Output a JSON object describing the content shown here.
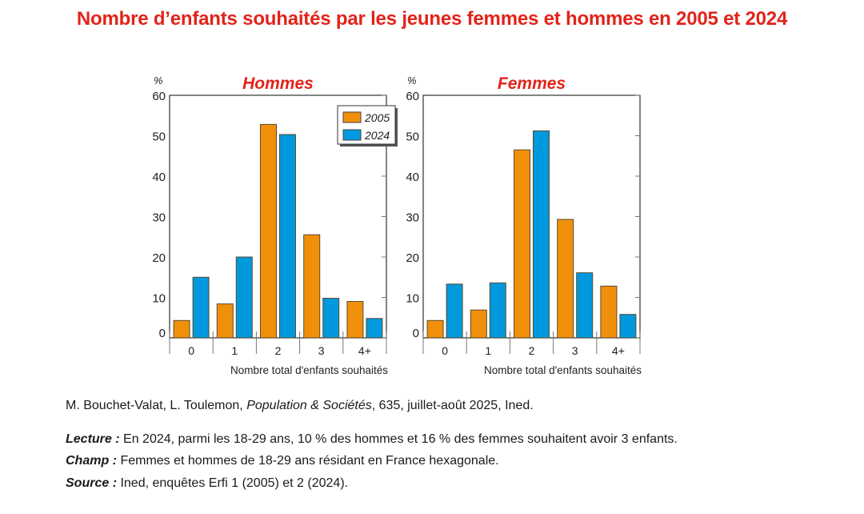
{
  "title": "Nombre d’enfants souhaités par les jeunes femmes et hommes en 2005 et 2024",
  "colors": {
    "title": "#e2231a",
    "s2005": "#f0900a",
    "s2024": "#0099dd"
  },
  "chart_data": [
    {
      "type": "bar",
      "title": "Hommes",
      "ylabel": "%",
      "xlabel": "Nombre total d'enfants souhaités",
      "ylim": [
        0,
        60
      ],
      "yticks": [
        0,
        10,
        20,
        30,
        40,
        50,
        60
      ],
      "categories": [
        "0",
        "1",
        "2",
        "3",
        "4+"
      ],
      "legend": "top-right",
      "series": [
        {
          "name": "2005",
          "values": [
            4.3,
            8.4,
            52.8,
            25.5,
            9.0
          ]
        },
        {
          "name": "2024",
          "values": [
            15.0,
            20.0,
            50.3,
            9.8,
            4.8
          ]
        }
      ]
    },
    {
      "type": "bar",
      "title": "Femmes",
      "ylabel": "%",
      "xlabel": "Nombre total d'enfants souhaités",
      "ylim": [
        0,
        60
      ],
      "yticks": [
        0,
        10,
        20,
        30,
        40,
        50,
        60
      ],
      "categories": [
        "0",
        "1",
        "2",
        "3",
        "4+"
      ],
      "series": [
        {
          "name": "2005",
          "values": [
            4.3,
            6.9,
            46.5,
            29.3,
            12.8
          ]
        },
        {
          "name": "2024",
          "values": [
            13.3,
            13.6,
            51.2,
            16.1,
            5.8
          ]
        }
      ]
    }
  ],
  "citation": {
    "authors": "M. Bouchet-Valat, L. Toulemon, ",
    "journal": "Population & Sociétés",
    "rest": ", 635, juillet-août 2025, Ined."
  },
  "notes": [
    {
      "label": "Lecture :",
      "text": " En 2024, parmi les 18-29 ans, 10 % des hommes et 16 % des femmes souhaitent avoir 3 enfants."
    },
    {
      "label": "Champ :",
      "text": " Femmes et hommes de 18-29 ans résidant en France hexagonale."
    },
    {
      "label": "Source :",
      "text": " Ined, enquêtes Erfi 1 (2005) et 2 (2024)."
    }
  ]
}
